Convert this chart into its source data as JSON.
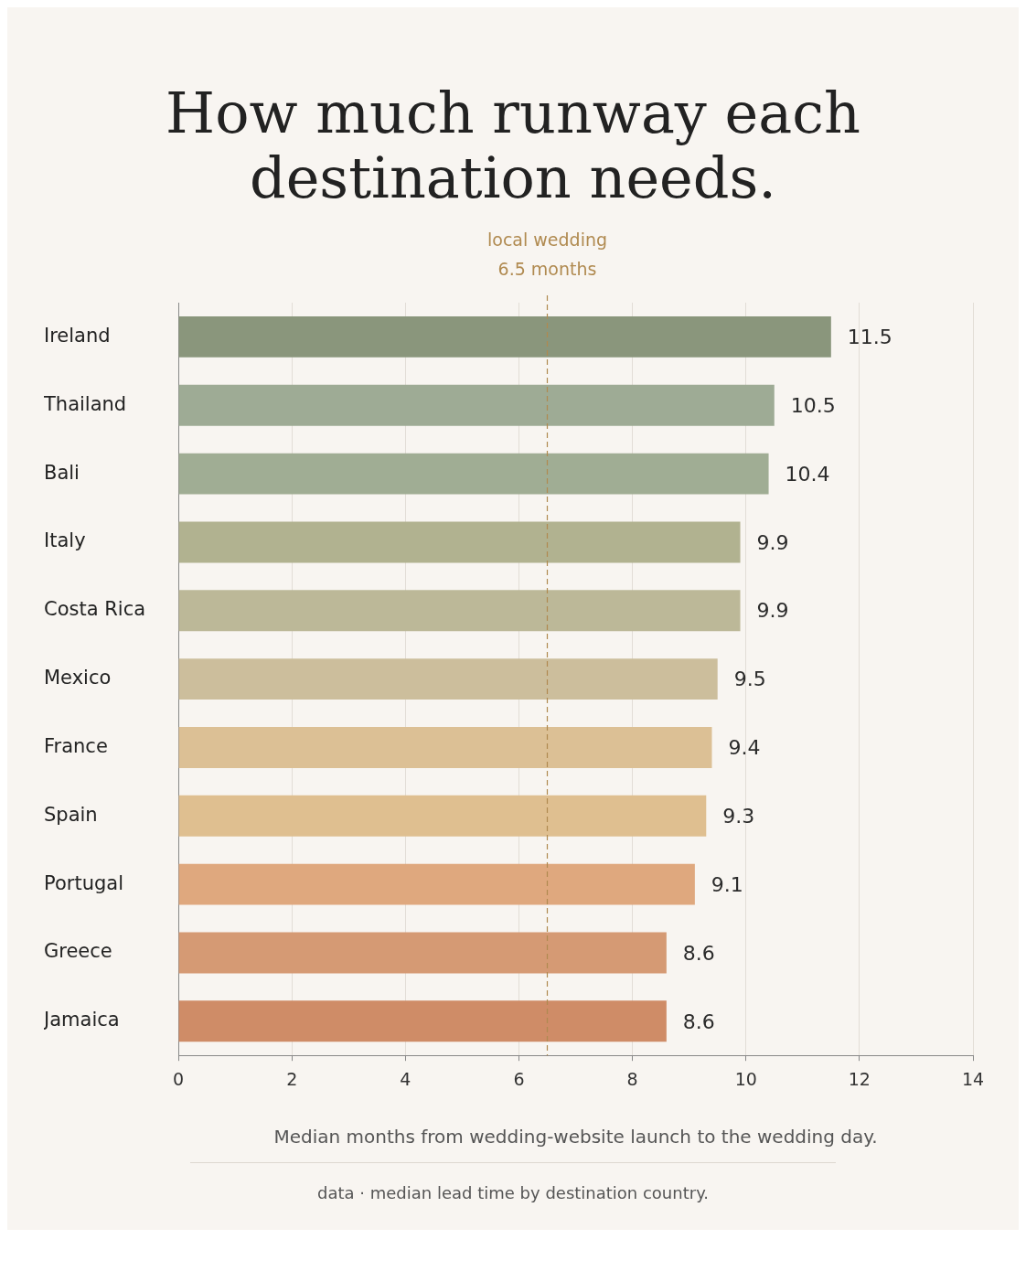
{
  "chart_data": {
    "type": "bar",
    "orientation": "horizontal",
    "title": "How much runway each destination needs.",
    "xlabel": "Median months from wedding-website launch to the wedding day.",
    "categories": [
      "Ireland",
      "Thailand",
      "Bali",
      "Italy",
      "Costa Rica",
      "Mexico",
      "France",
      "Spain",
      "Portugal",
      "Greece",
      "Jamaica"
    ],
    "values": [
      11.5,
      10.5,
      10.4,
      9.9,
      9.9,
      9.5,
      9.4,
      9.3,
      9.1,
      8.6,
      8.6
    ],
    "colors": [
      "#8a967c",
      "#9eab95",
      "#a0ad94",
      "#b1b290",
      "#bcb898",
      "#ccbe9c",
      "#dcc095",
      "#dfbf90",
      "#dfa87e",
      "#d59a74",
      "#cf8c67"
    ],
    "xlim": [
      0,
      14
    ],
    "xticks": [
      0,
      2,
      4,
      6,
      8,
      10,
      12,
      14
    ],
    "grid": "x",
    "data_labels": true,
    "ref_lines": [
      {
        "axis": "x",
        "value": 6.5,
        "label": "local wedding\n6.5 months",
        "color": "#b08a50",
        "line_style": "dashed"
      }
    ],
    "annotations": [
      "data · median lead time by destination country."
    ]
  }
}
